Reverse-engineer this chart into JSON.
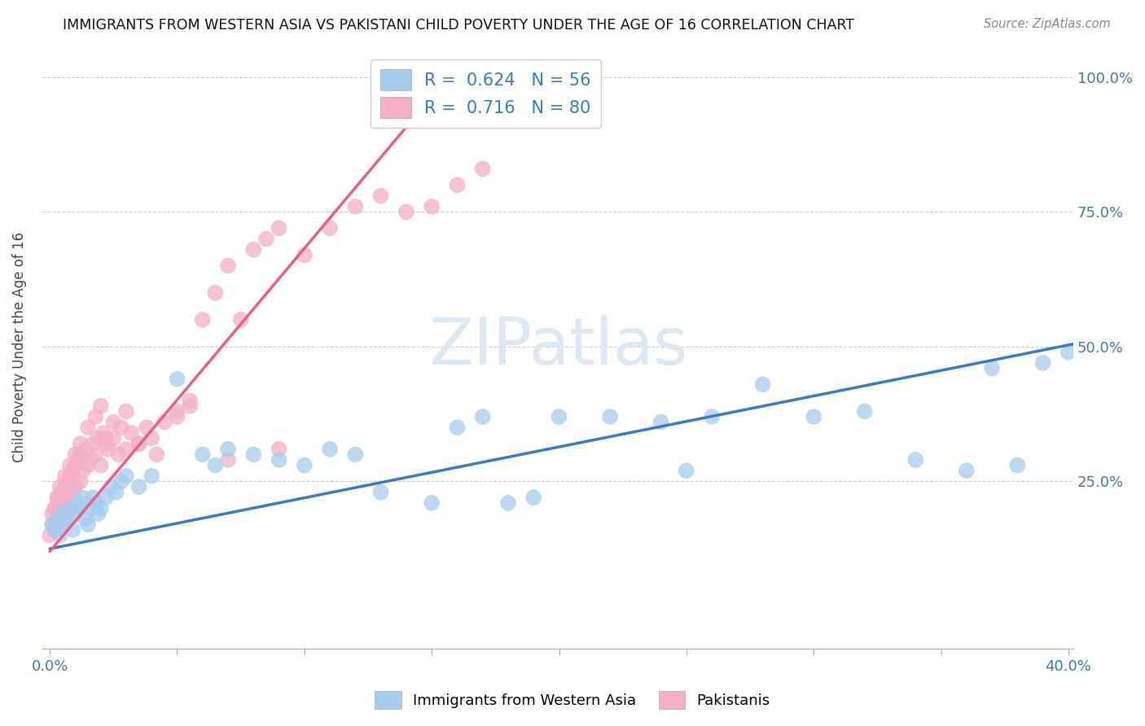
{
  "title": "IMMIGRANTS FROM WESTERN ASIA VS PAKISTANI CHILD POVERTY UNDER THE AGE OF 16 CORRELATION CHART",
  "source": "Source: ZipAtlas.com",
  "ylabel": "Child Poverty Under the Age of 16",
  "yticks": [
    0.0,
    0.25,
    0.5,
    0.75,
    1.0
  ],
  "ytick_labels": [
    "",
    "25.0%",
    "50.0%",
    "75.0%",
    "100.0%"
  ],
  "xlim": [
    -0.003,
    0.402
  ],
  "ylim": [
    -0.06,
    1.06
  ],
  "legend_blue_R": "0.624",
  "legend_blue_N": "56",
  "legend_pink_R": "0.716",
  "legend_pink_N": "80",
  "blue_color": "#a8ccec",
  "pink_color": "#f4afc8",
  "blue_line_color": "#3a7bbf",
  "pink_line_color": "#e8608a",
  "watermark": "ZIPatlas",
  "watermark_color": "#dce8f4",
  "blue_line_x0": 0.0,
  "blue_line_y0": 0.125,
  "blue_line_x1": 0.402,
  "blue_line_y1": 0.505,
  "pink_line_x0": 0.0,
  "pink_line_y0": 0.12,
  "pink_line_x1": 0.16,
  "pink_line_y1": 1.02,
  "blue_scatter_x": [
    0.001,
    0.002,
    0.003,
    0.004,
    0.005,
    0.006,
    0.007,
    0.008,
    0.009,
    0.01,
    0.011,
    0.012,
    0.013,
    0.014,
    0.015,
    0.016,
    0.017,
    0.018,
    0.019,
    0.02,
    0.022,
    0.024,
    0.026,
    0.028,
    0.03,
    0.035,
    0.04,
    0.05,
    0.06,
    0.065,
    0.07,
    0.08,
    0.09,
    0.1,
    0.11,
    0.12,
    0.13,
    0.15,
    0.16,
    0.17,
    0.18,
    0.19,
    0.2,
    0.22,
    0.24,
    0.25,
    0.26,
    0.28,
    0.3,
    0.32,
    0.34,
    0.36,
    0.38,
    0.39,
    0.4,
    0.37
  ],
  "blue_scatter_y": [
    0.17,
    0.16,
    0.18,
    0.15,
    0.19,
    0.17,
    0.18,
    0.2,
    0.16,
    0.19,
    0.21,
    0.2,
    0.22,
    0.18,
    0.17,
    0.2,
    0.22,
    0.21,
    0.19,
    0.2,
    0.22,
    0.24,
    0.23,
    0.25,
    0.26,
    0.24,
    0.26,
    0.44,
    0.3,
    0.28,
    0.31,
    0.3,
    0.29,
    0.28,
    0.31,
    0.3,
    0.23,
    0.21,
    0.35,
    0.37,
    0.21,
    0.22,
    0.37,
    0.37,
    0.36,
    0.27,
    0.37,
    0.43,
    0.37,
    0.38,
    0.29,
    0.27,
    0.28,
    0.47,
    0.49,
    0.46
  ],
  "pink_scatter_x": [
    0.0,
    0.001,
    0.001,
    0.002,
    0.002,
    0.003,
    0.003,
    0.004,
    0.004,
    0.005,
    0.005,
    0.006,
    0.006,
    0.007,
    0.007,
    0.008,
    0.008,
    0.009,
    0.009,
    0.01,
    0.01,
    0.011,
    0.012,
    0.012,
    0.013,
    0.014,
    0.015,
    0.016,
    0.017,
    0.018,
    0.019,
    0.02,
    0.021,
    0.022,
    0.023,
    0.025,
    0.027,
    0.03,
    0.032,
    0.035,
    0.038,
    0.04,
    0.045,
    0.05,
    0.055,
    0.06,
    0.065,
    0.07,
    0.075,
    0.08,
    0.085,
    0.09,
    0.1,
    0.11,
    0.12,
    0.13,
    0.14,
    0.15,
    0.16,
    0.17,
    0.018,
    0.02,
    0.025,
    0.03,
    0.01,
    0.012,
    0.015,
    0.008,
    0.006,
    0.004,
    0.003,
    0.002,
    0.022,
    0.028,
    0.035,
    0.042,
    0.05,
    0.055,
    0.07,
    0.09
  ],
  "pink_scatter_y": [
    0.15,
    0.17,
    0.19,
    0.16,
    0.2,
    0.18,
    0.22,
    0.17,
    0.21,
    0.19,
    0.23,
    0.2,
    0.24,
    0.21,
    0.25,
    0.22,
    0.26,
    0.23,
    0.27,
    0.24,
    0.28,
    0.29,
    0.25,
    0.3,
    0.27,
    0.31,
    0.28,
    0.29,
    0.32,
    0.3,
    0.33,
    0.28,
    0.34,
    0.32,
    0.31,
    0.33,
    0.3,
    0.31,
    0.34,
    0.32,
    0.35,
    0.33,
    0.36,
    0.38,
    0.4,
    0.55,
    0.6,
    0.65,
    0.55,
    0.68,
    0.7,
    0.72,
    0.67,
    0.72,
    0.76,
    0.78,
    0.75,
    0.76,
    0.8,
    0.83,
    0.37,
    0.39,
    0.36,
    0.38,
    0.3,
    0.32,
    0.35,
    0.28,
    0.26,
    0.24,
    0.22,
    0.2,
    0.33,
    0.35,
    0.32,
    0.3,
    0.37,
    0.39,
    0.29,
    0.31
  ]
}
